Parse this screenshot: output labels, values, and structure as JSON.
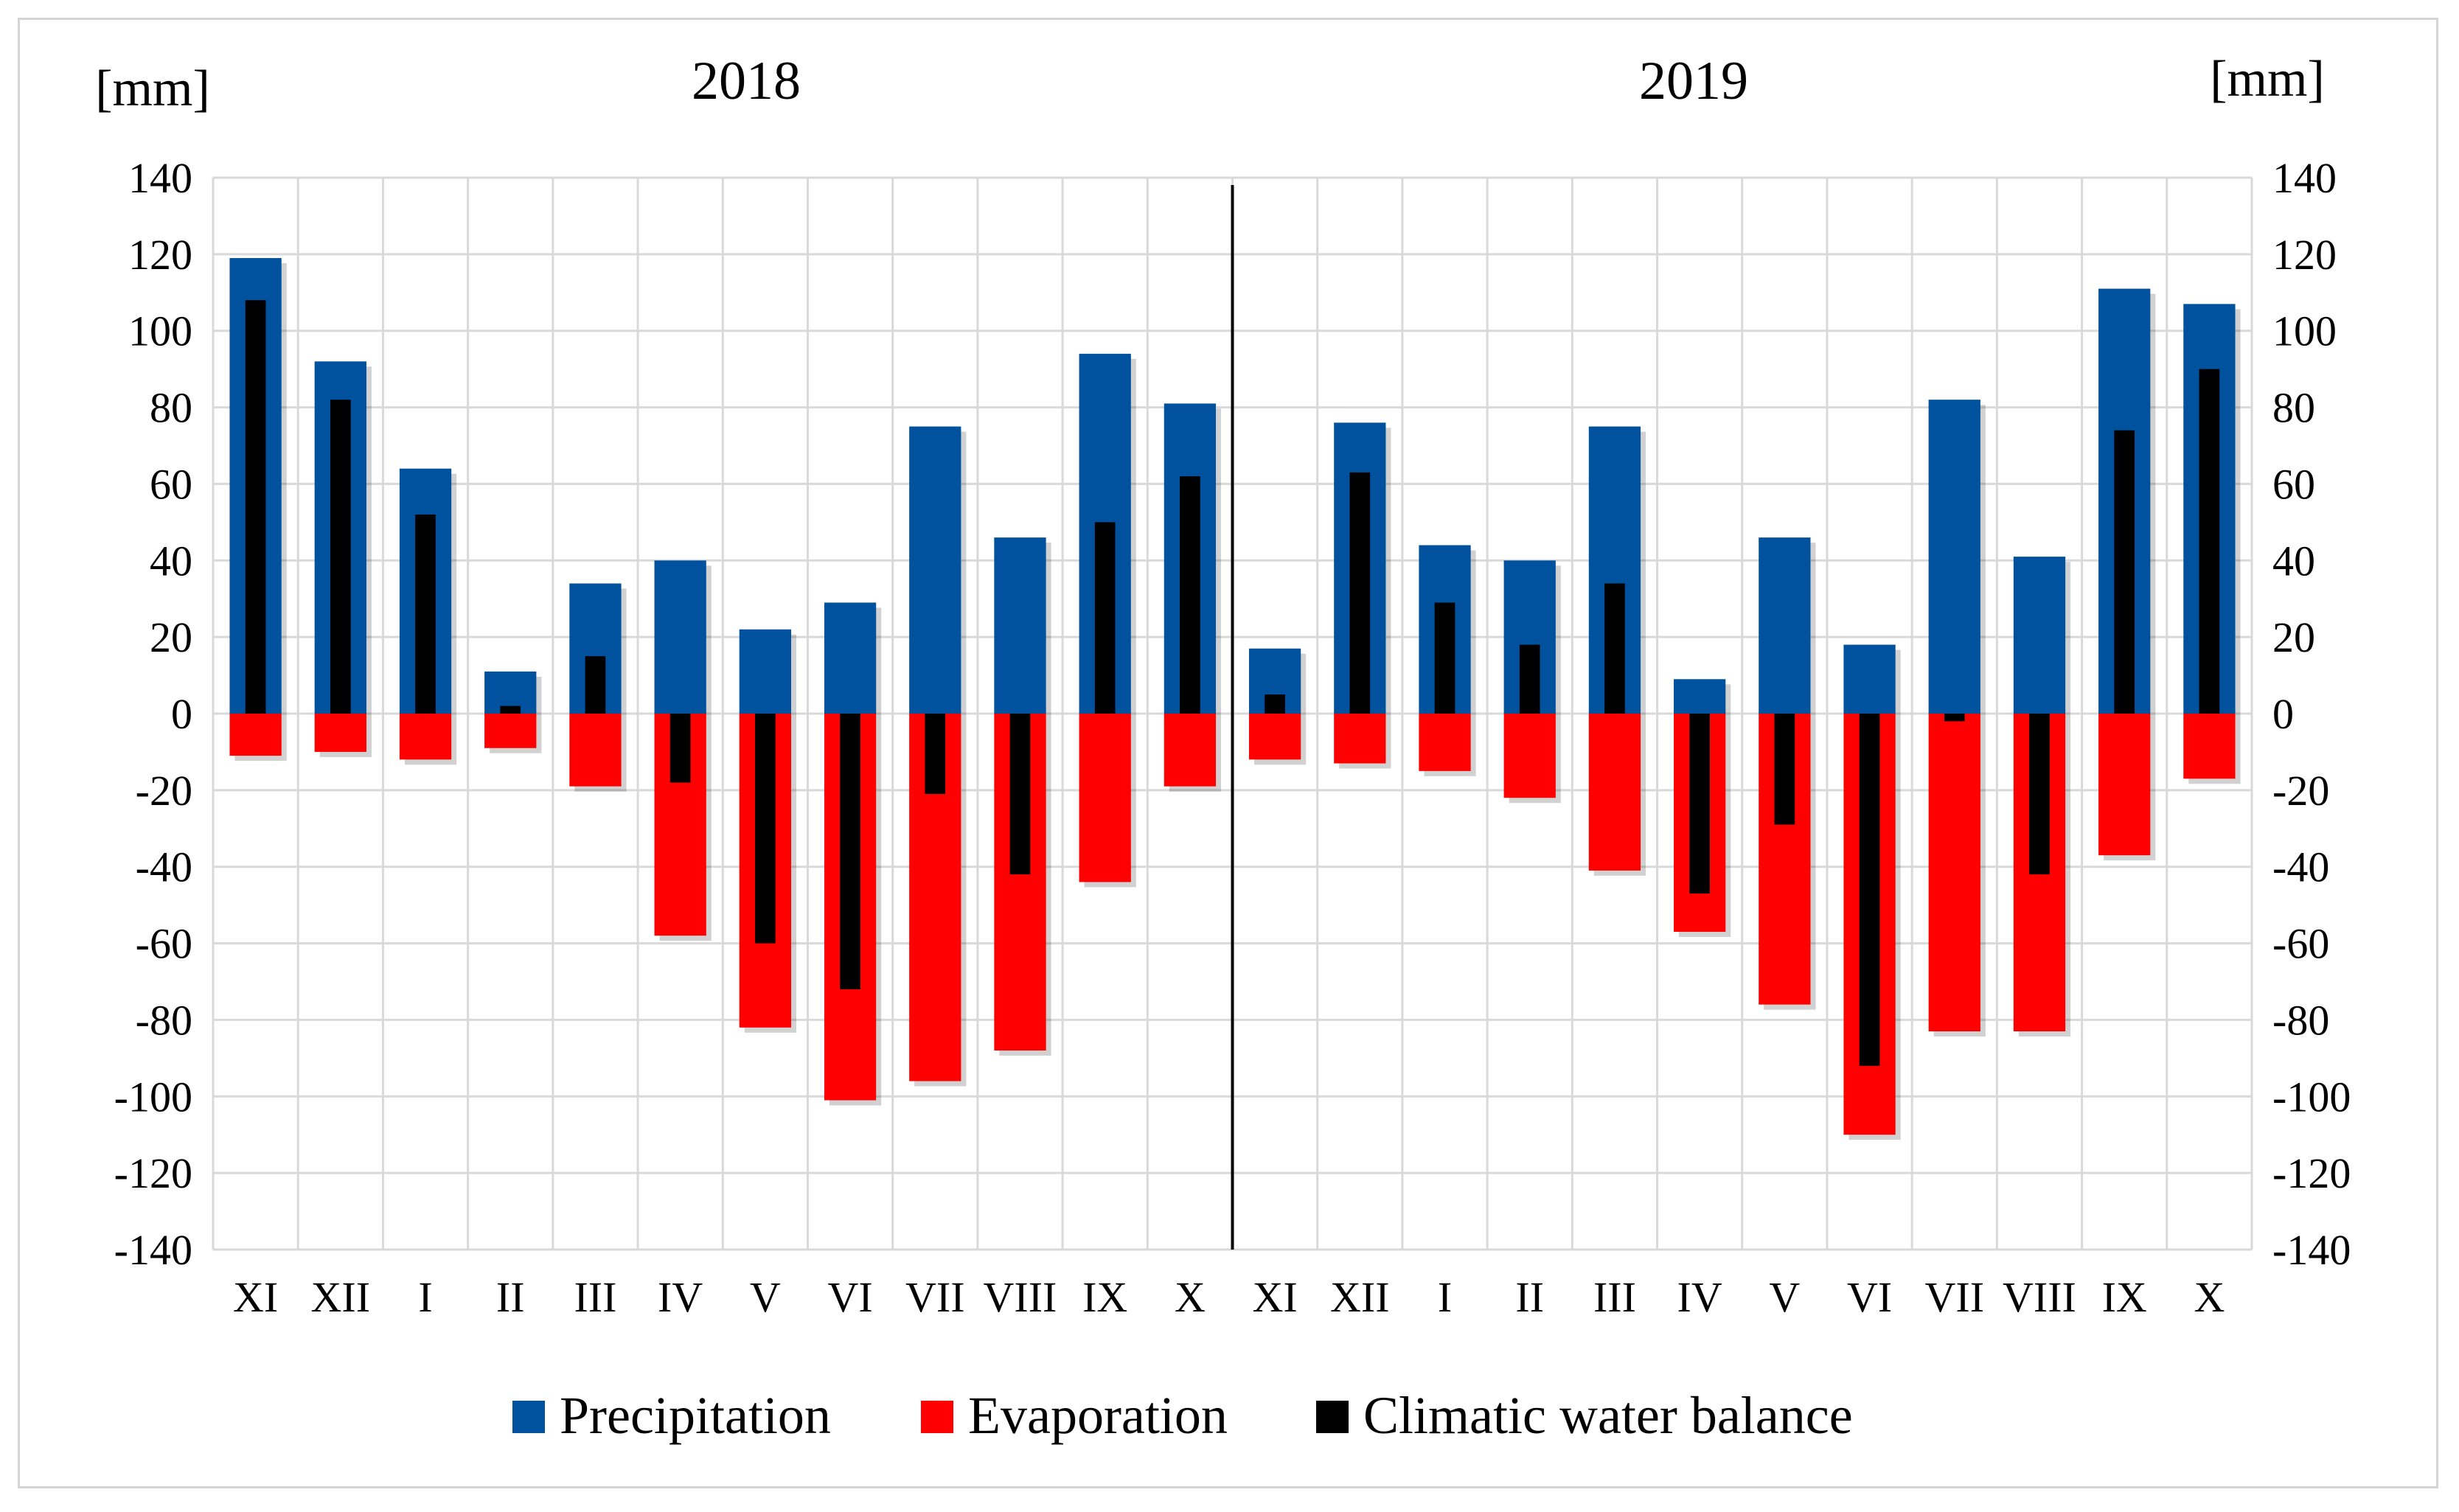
{
  "chart_data": {
    "type": "bar",
    "ylabel_left": "[mm]",
    "ylabel_right": "[mm]",
    "ylim": [
      -140,
      140
    ],
    "yticks": [
      140,
      120,
      100,
      80,
      60,
      40,
      20,
      0,
      -20,
      -40,
      -60,
      -80,
      -100,
      -120,
      -140
    ],
    "grid": true,
    "legend_position": "bottom",
    "colors": {
      "Precipitation": "#00529f",
      "Evaporation": "#ff0000",
      "Climatic water balance": "#000000",
      "grid": "#d9d9d9"
    },
    "groups": [
      {
        "year": "2018",
        "categories": [
          "XI",
          "XII",
          "I",
          "II",
          "III",
          "IV",
          "V",
          "VI",
          "VII",
          "VIII",
          "IX",
          "X"
        ]
      },
      {
        "year": "2019",
        "categories": [
          "XI",
          "XII",
          "I",
          "II",
          "III",
          "IV",
          "V",
          "VI",
          "VII",
          "VIII",
          "IX",
          "X"
        ]
      }
    ],
    "series": [
      {
        "name": "Precipitation",
        "values": [
          119,
          92,
          64,
          11,
          34,
          40,
          22,
          29,
          75,
          46,
          94,
          81,
          17,
          76,
          44,
          40,
          75,
          9,
          46,
          18,
          82,
          41,
          111,
          107
        ]
      },
      {
        "name": "Evaporation",
        "values": [
          -11,
          -10,
          -12,
          -9,
          -19,
          -58,
          -82,
          -101,
          -96,
          -88,
          -44,
          -19,
          -12,
          -13,
          -15,
          -22,
          -41,
          -57,
          -76,
          -110,
          -83,
          -83,
          -37,
          -17
        ]
      },
      {
        "name": "Climatic water balance",
        "values": [
          108,
          82,
          52,
          2,
          15,
          -18,
          -60,
          -72,
          -21,
          -42,
          50,
          62,
          5,
          63,
          29,
          18,
          34,
          -47,
          -29,
          -92,
          -2,
          -42,
          74,
          90
        ]
      }
    ]
  }
}
